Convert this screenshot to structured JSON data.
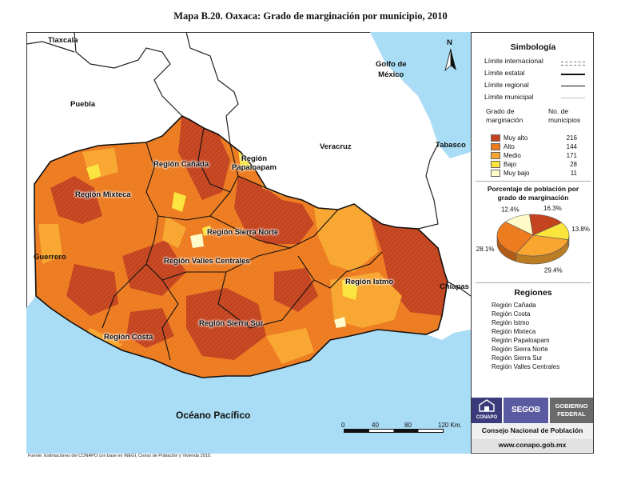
{
  "title": "Mapa B.20. Oaxaca: Grado de marginación por municipio, 2010",
  "map": {
    "neighbor_labels": [
      "Tlaxcala",
      "Puebla",
      "Veracruz",
      "Tabasco",
      "Guerrero",
      "Chiapas"
    ],
    "water_labels": {
      "gulf": "Golfo de\nMéxico",
      "ocean": "Océano Pacífico"
    },
    "north": "N",
    "regions": {
      "canada": "Región Cañada",
      "papaloapam": "Región\nPapaloapam",
      "mixteca": "Región Mixteca",
      "sierra_norte": "Región Sierra Norte",
      "valles": "Región Valles Centrales",
      "istmo": "Región Istmo",
      "sierra_sur": "Región Sierra Sur",
      "costa": "Región Costa"
    },
    "scale": {
      "ticks": [
        "0",
        "40",
        "80",
        "120 Km."
      ]
    },
    "colors": {
      "water": "#a9dcf5",
      "outside": "#ffffff"
    }
  },
  "legend": {
    "title": "Simbología",
    "limits": [
      {
        "label": "Límite internacional"
      },
      {
        "label": "Límite estatal"
      },
      {
        "label": "Límite regional"
      },
      {
        "label": "Límite municipal"
      }
    ],
    "header_grade": "Grado de\nmarginación",
    "header_count": "No. de\nmunicipios",
    "categories": [
      {
        "label": "Muy alto",
        "count": "216",
        "color": "#c4441f"
      },
      {
        "label": "Alto",
        "count": "144",
        "color": "#ed7b1f"
      },
      {
        "label": "Medio",
        "count": "171",
        "color": "#f8a62f"
      },
      {
        "label": "Bajo",
        "count": "28",
        "color": "#fbe43c"
      },
      {
        "label": "Muy bajo",
        "count": "11",
        "color": "#fffac8"
      }
    ],
    "pie_title": "Porcentaje de población por\ngrado de marginación",
    "pie": [
      {
        "label": "12.4%",
        "value": 12.4,
        "color": "#fffac8"
      },
      {
        "label": "16.3%",
        "value": 16.3,
        "color": "#c4441f"
      },
      {
        "label": "13.8%",
        "value": 13.8,
        "color": "#fbe43c"
      },
      {
        "label": "29.4%",
        "value": 29.4,
        "color": "#f8a62f"
      },
      {
        "label": "28.1%",
        "value": 28.1,
        "color": "#ed7b1f"
      }
    ],
    "regions_title": "Regiones",
    "regions_list": [
      "Región Cañada",
      "Región Costa",
      "Región Istmo",
      "Región Mixteca",
      "Región Papaloapam",
      "Región Sierra Norte",
      "Región Sierra Sur",
      "Región Valles Centrales"
    ],
    "logos": {
      "conapo": "CONAPO",
      "segob": "SEGOB",
      "gobierno": "GOBIERNO\nFEDERAL"
    },
    "institution": "Consejo Nacional de Población",
    "website": "www.conapo.gob.mx"
  },
  "source": "Fuente: Estimaciones del CONAPO con base en INEGI, Censo de Población y Vivienda 2010."
}
